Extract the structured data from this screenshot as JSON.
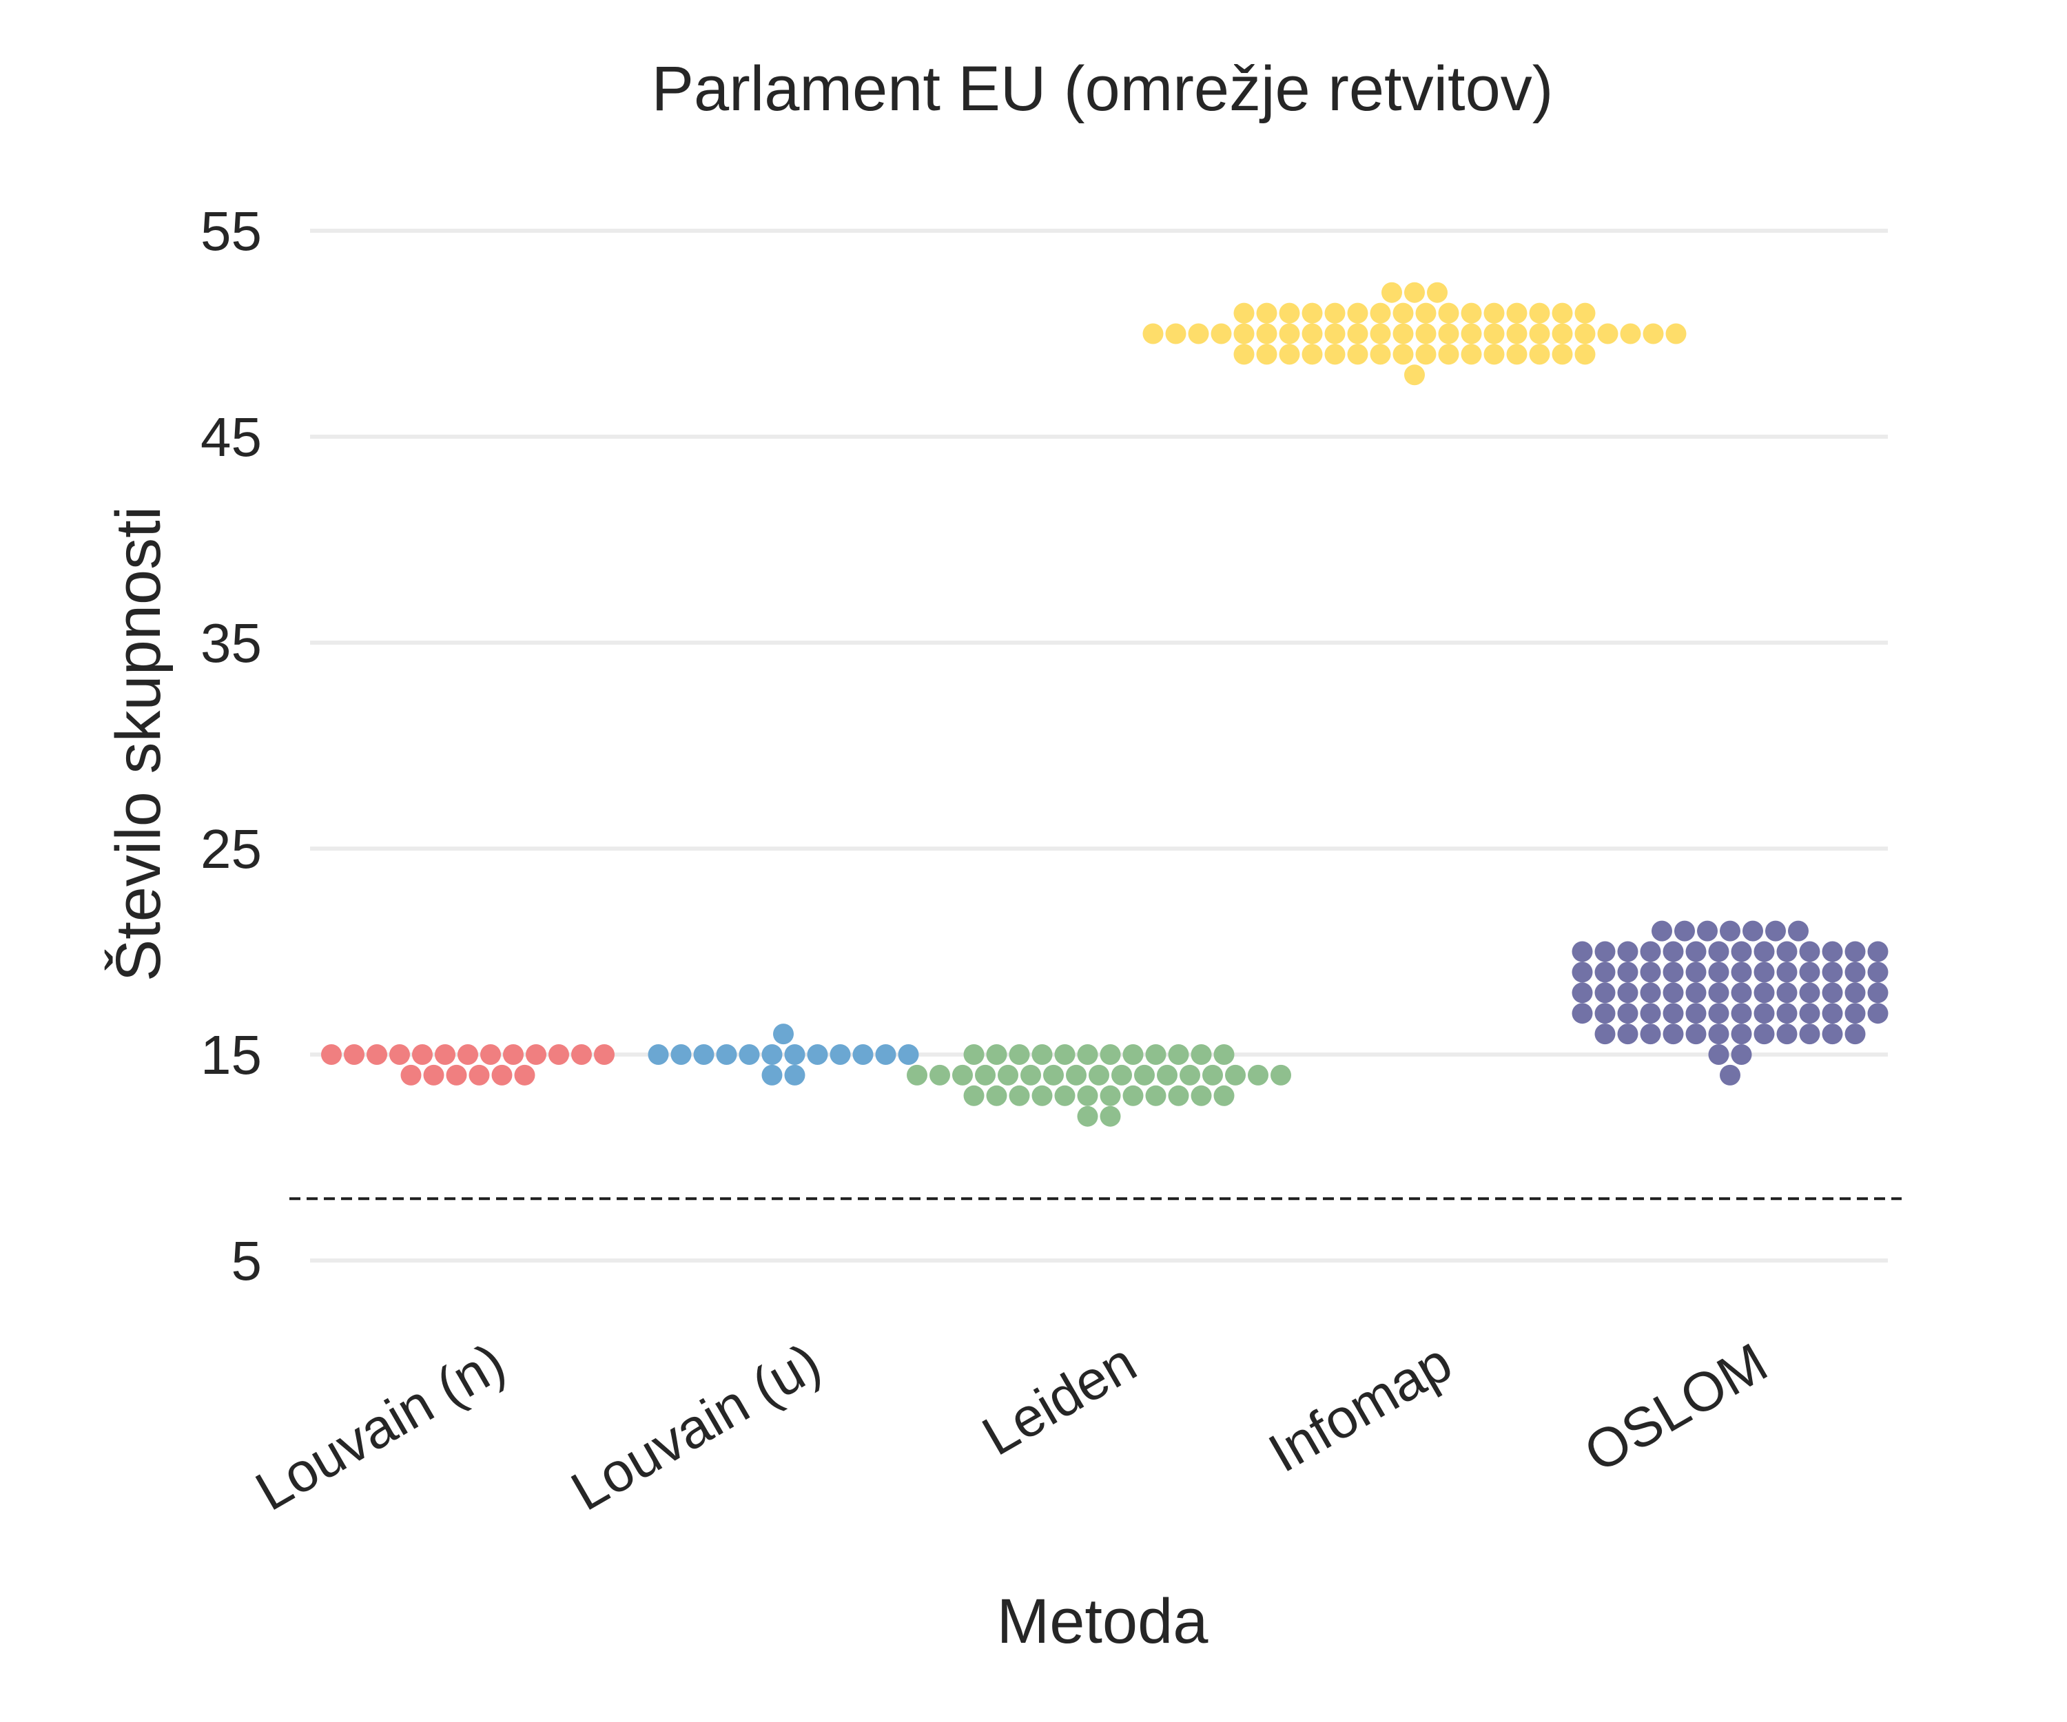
{
  "chart_data": {
    "type": "scatter",
    "subtype": "swarm",
    "title": "Parlament EU  (omrežje retvitov)",
    "xlabel": "Metoda",
    "ylabel": "Število skupnosti",
    "categories": [
      "Louvain (n)",
      "Louvain (u)",
      "Leiden",
      "Infomap",
      "OSLOM"
    ],
    "yticks": [
      5,
      15,
      25,
      35,
      45,
      55
    ],
    "ylim": [
      0,
      57
    ],
    "grid": true,
    "reference_line": 8,
    "series": [
      {
        "color": "#f07f80",
        "values": [
          15,
          15,
          15,
          15,
          15,
          15,
          15,
          15,
          15,
          15,
          15,
          15,
          15,
          14,
          14,
          14,
          14,
          14,
          14
        ]
      },
      {
        "color": "#6ba7d2",
        "values": [
          15,
          15,
          15,
          15,
          15,
          15,
          15,
          15,
          15,
          15,
          15,
          15,
          14,
          14,
          16
        ]
      },
      {
        "color": "#8fbf8e",
        "values": [
          15,
          15,
          15,
          15,
          15,
          15,
          15,
          15,
          15,
          15,
          15,
          15,
          14,
          14,
          14,
          14,
          14,
          14,
          14,
          14,
          14,
          14,
          14,
          14,
          14,
          14,
          14,
          14,
          14,
          13,
          13,
          13,
          13,
          13,
          13,
          13,
          13,
          13,
          13,
          13,
          13,
          12,
          12
        ]
      },
      {
        "color": "#fedd6a",
        "values": [
          52,
          52,
          52,
          51,
          51,
          51,
          51,
          51,
          51,
          51,
          51,
          51,
          51,
          51,
          51,
          51,
          51,
          51,
          51,
          50,
          50,
          50,
          50,
          50,
          50,
          50,
          50,
          50,
          50,
          50,
          50,
          50,
          50,
          50,
          50,
          50,
          50,
          50,
          50,
          50,
          50,
          50,
          50,
          49,
          49,
          49,
          49,
          49,
          49,
          49,
          49,
          49,
          49,
          49,
          49,
          49,
          49,
          49,
          49,
          48
        ]
      },
      {
        "color": "#7272a6",
        "values": [
          21,
          21,
          21,
          21,
          21,
          21,
          21,
          20,
          20,
          20,
          20,
          20,
          20,
          20,
          20,
          20,
          20,
          20,
          20,
          20,
          20,
          19,
          19,
          19,
          19,
          19,
          19,
          19,
          19,
          19,
          19,
          19,
          19,
          19,
          19,
          18,
          18,
          18,
          18,
          18,
          18,
          18,
          18,
          18,
          18,
          18,
          18,
          18,
          18,
          17,
          17,
          17,
          17,
          17,
          17,
          17,
          17,
          17,
          17,
          17,
          17,
          17,
          17,
          16,
          16,
          16,
          16,
          16,
          16,
          16,
          16,
          16,
          16,
          16,
          16,
          15,
          15,
          14
        ]
      }
    ]
  }
}
